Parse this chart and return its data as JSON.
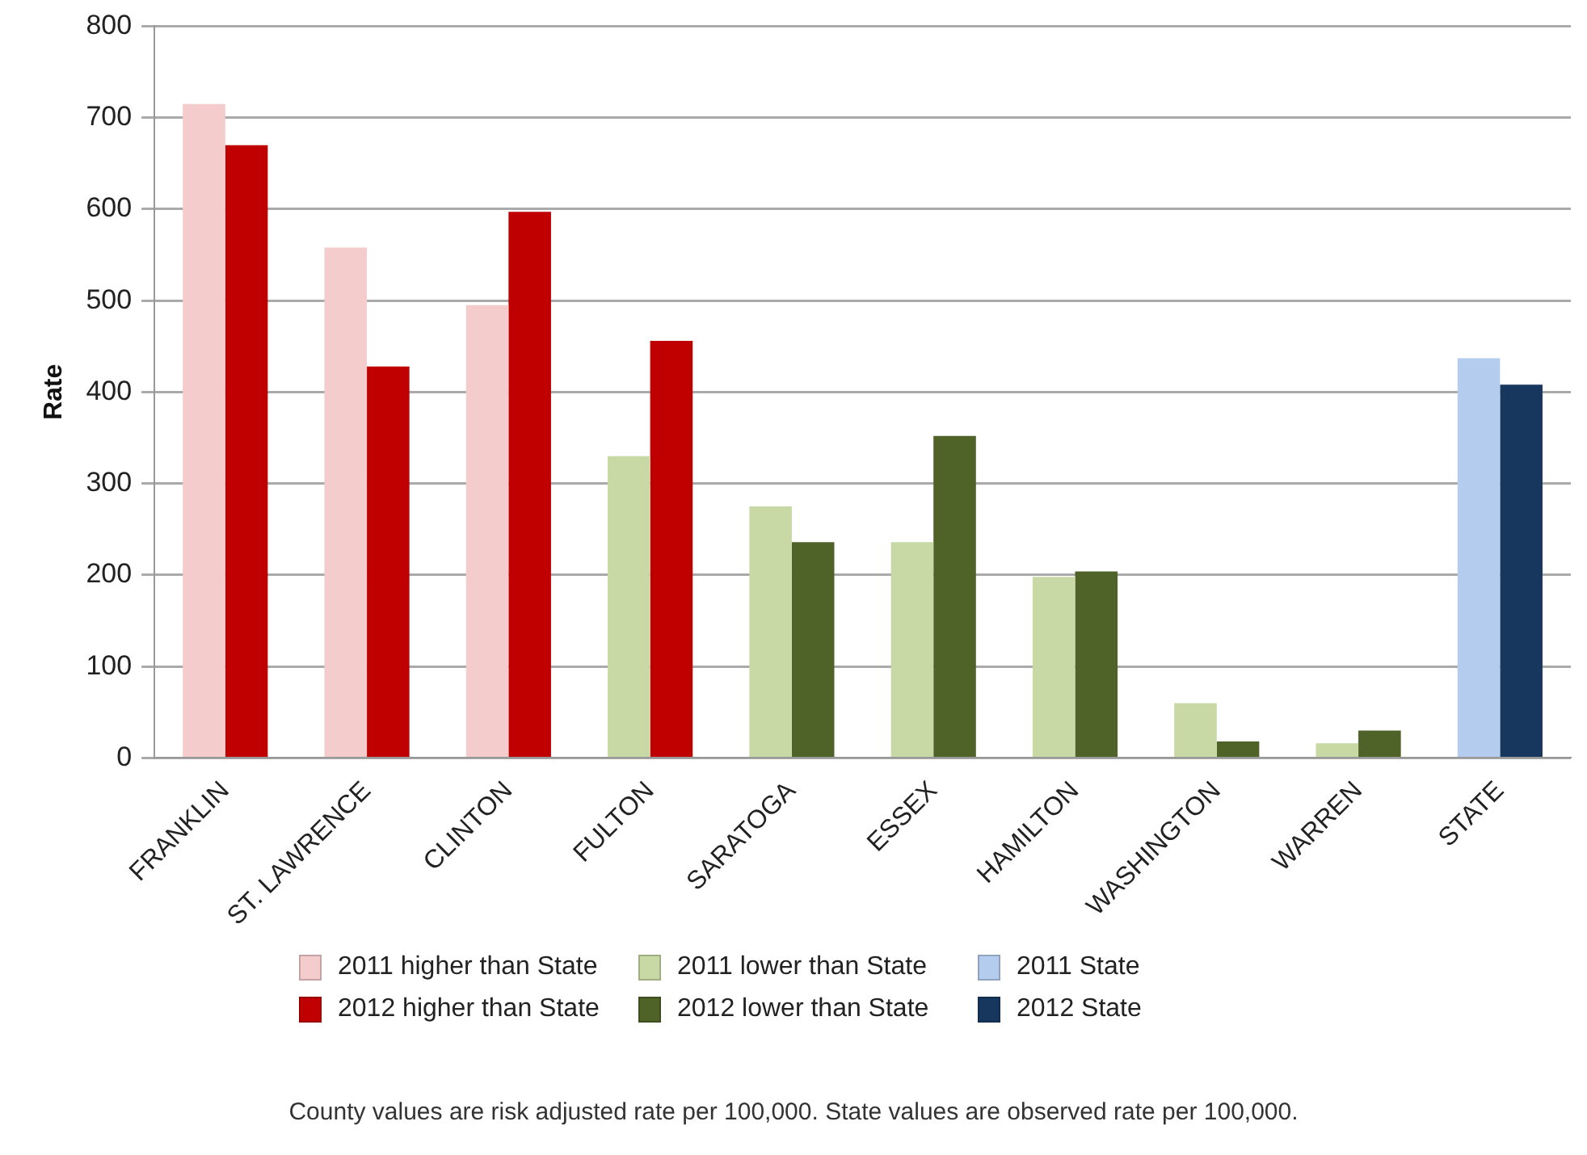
{
  "chart_data": {
    "type": "bar",
    "ylabel": "Rate",
    "categories": [
      "FRANKLIN",
      "ST. LAWRENCE",
      "CLINTON",
      "FULTON",
      "SARATOGA",
      "ESSEX",
      "HAMILTON",
      "WASHINGTON",
      "WARREN",
      "STATE"
    ],
    "series": [
      {
        "name": "2011 higher than State",
        "color": "#f4cccc",
        "values": [
          715,
          558,
          495,
          null,
          null,
          null,
          null,
          null,
          null,
          null
        ]
      },
      {
        "name": "2011 lower than State",
        "color": "#c9d9a6",
        "values": [
          null,
          null,
          null,
          330,
          275,
          236,
          198,
          60,
          16,
          null
        ]
      },
      {
        "name": "2011 State",
        "color": "#b4cdef",
        "values": [
          null,
          null,
          null,
          null,
          null,
          null,
          null,
          null,
          null,
          437
        ]
      },
      {
        "name": "2012 higher than State",
        "color": "#c00000",
        "values": [
          670,
          428,
          597,
          456,
          null,
          null,
          null,
          null,
          null,
          null
        ]
      },
      {
        "name": "2012 lower than State",
        "color": "#4f6228",
        "values": [
          null,
          null,
          null,
          null,
          236,
          352,
          204,
          18,
          30,
          null
        ]
      },
      {
        "name": "2012 State",
        "color": "#17375e",
        "values": [
          null,
          null,
          null,
          null,
          null,
          null,
          null,
          null,
          null,
          408
        ]
      }
    ],
    "ylim": [
      0,
      800
    ],
    "yticks": [
      0,
      100,
      200,
      300,
      400,
      500,
      600,
      700,
      800
    ],
    "grid": "y",
    "legend": "bottom",
    "annotations": [
      "County values are risk adjusted rate per 100,000. State values are observed rate per 100,000."
    ]
  }
}
